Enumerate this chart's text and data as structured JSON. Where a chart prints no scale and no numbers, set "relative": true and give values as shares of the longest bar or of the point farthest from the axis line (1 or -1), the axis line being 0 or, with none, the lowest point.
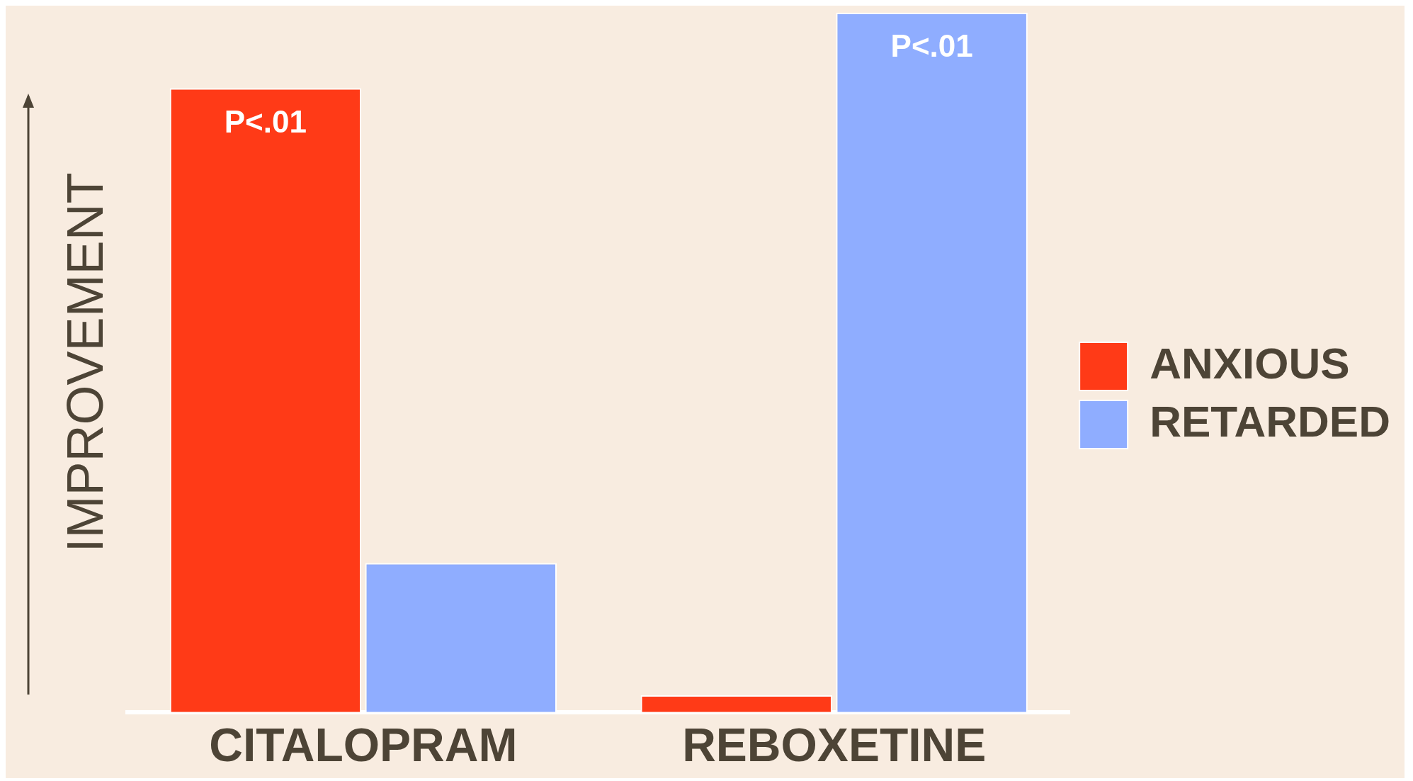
{
  "chart_data": {
    "type": "bar",
    "relative": true,
    "ylabel": "IMPROVEMENT",
    "categories": [
      "CITALOPRAM",
      "REBOXETINE"
    ],
    "series": [
      {
        "name": "ANXIOUS",
        "color": "#ff3a17",
        "values": [
          0.892,
          0.024
        ]
      },
      {
        "name": "RETARDED",
        "color": "#8fadff",
        "values": [
          0.213,
          1
        ]
      }
    ],
    "annotations": [
      {
        "text": "P<.01",
        "x": "CITALOPRAM",
        "y": 0.892
      },
      {
        "text": "P<.01",
        "x": "REBOXETINE",
        "y": 1
      }
    ],
    "legend": "right",
    "grid": false
  }
}
